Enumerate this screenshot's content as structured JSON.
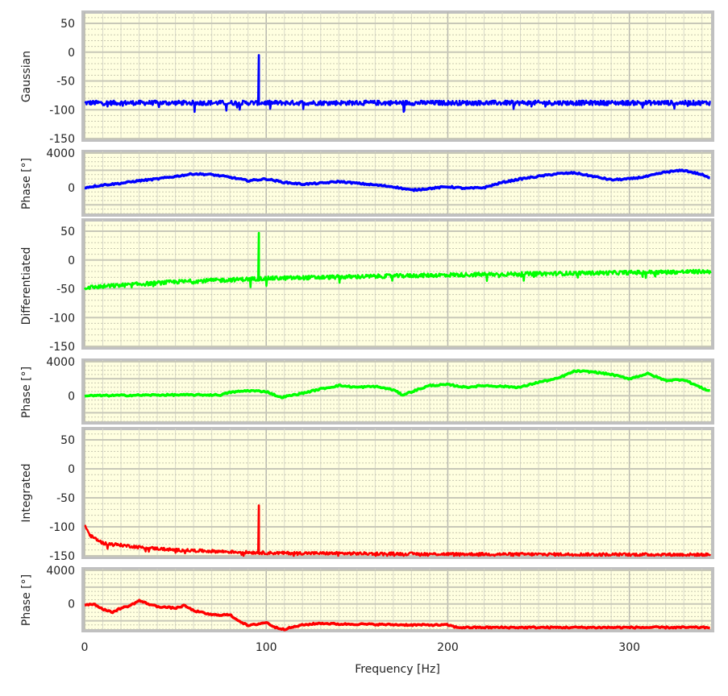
{
  "chart_data": {
    "type": "line",
    "xlabel": "Frequency [Hz]",
    "xlim": [
      0,
      345
    ],
    "xticks": [
      0,
      100,
      200,
      300
    ],
    "grid": true,
    "background_color": "#ffffe0",
    "panels": [
      {
        "ylabel": "Gaussian",
        "kind": "magnitude",
        "color": "#0000ff",
        "ylim": [
          -150,
          50
        ],
        "yticks": [
          50,
          0,
          -50,
          -100,
          -150
        ],
        "baseline": {
          "x": [
            0,
            345
          ],
          "y": [
            -88,
            -88
          ]
        },
        "noise_amplitude": 8,
        "peak": {
          "x": 96,
          "y": -5
        }
      },
      {
        "ylabel": "Phase [°]",
        "kind": "phase",
        "color": "#0000ff",
        "ylim": [
          -3000,
          4000
        ],
        "yticks": [
          4000,
          0
        ],
        "x": [
          0,
          10,
          20,
          30,
          40,
          50,
          60,
          70,
          80,
          90,
          100,
          110,
          120,
          130,
          140,
          150,
          160,
          170,
          180,
          190,
          200,
          210,
          220,
          230,
          240,
          250,
          260,
          270,
          280,
          290,
          300,
          310,
          320,
          330,
          340,
          345
        ],
        "y": [
          0,
          300,
          500,
          800,
          1000,
          1300,
          1600,
          1500,
          1200,
          800,
          1000,
          600,
          400,
          500,
          700,
          500,
          300,
          100,
          -300,
          -100,
          100,
          -100,
          0,
          600,
          1000,
          1300,
          1600,
          1700,
          1300,
          900,
          1000,
          1300,
          1800,
          2000,
          1500,
          1000
        ]
      },
      {
        "ylabel": "Differentiated",
        "kind": "magnitude",
        "color": "#00ff00",
        "ylim": [
          -150,
          50
        ],
        "yticks": [
          50,
          0,
          -50,
          -100,
          -150
        ],
        "baseline": {
          "x": [
            0,
            50,
            100,
            200,
            345
          ],
          "y": [
            -48,
            -38,
            -32,
            -26,
            -20
          ]
        },
        "noise_amplitude": 7,
        "peak": {
          "x": 96,
          "y": 47
        }
      },
      {
        "ylabel": "Phase [°]",
        "kind": "phase",
        "color": "#00ff00",
        "ylim": [
          -3000,
          4000
        ],
        "yticks": [
          4000,
          0
        ],
        "x": [
          0,
          45,
          75,
          80,
          90,
          100,
          108,
          120,
          130,
          140,
          150,
          160,
          170,
          175,
          190,
          200,
          210,
          220,
          230,
          240,
          250,
          260,
          270,
          280,
          290,
          300,
          310,
          320,
          330,
          340,
          345
        ],
        "y": [
          0,
          100,
          100,
          400,
          600,
          500,
          -200,
          300,
          800,
          1200,
          1000,
          1100,
          700,
          100,
          1200,
          1300,
          1000,
          1200,
          1100,
          1000,
          1600,
          2000,
          2900,
          2800,
          2500,
          2000,
          2600,
          1800,
          1900,
          900,
          500
        ]
      },
      {
        "ylabel": "Integrated",
        "kind": "magnitude",
        "color": "#ff0000",
        "ylim": [
          -150,
          50
        ],
        "yticks": [
          50,
          0,
          -50,
          -100,
          -150
        ],
        "baseline": {
          "x": [
            0,
            3,
            10,
            30,
            50,
            100,
            200,
            345
          ],
          "y": [
            -97,
            -115,
            -128,
            -135,
            -140,
            -145,
            -147,
            -148
          ]
        },
        "noise_amplitude": 5,
        "peak": {
          "x": 96,
          "y": -63
        }
      },
      {
        "ylabel": "Phase [°]",
        "kind": "phase",
        "color": "#ff0000",
        "ylim": [
          -3000,
          4000
        ],
        "yticks": [
          4000,
          0
        ],
        "x": [
          0,
          5,
          10,
          15,
          20,
          25,
          30,
          35,
          40,
          45,
          50,
          55,
          60,
          70,
          80,
          85,
          90,
          100,
          105,
          110,
          120,
          130,
          140,
          150,
          180,
          200,
          205,
          345
        ],
        "y": [
          -100,
          0,
          -600,
          -1000,
          -500,
          -200,
          400,
          0,
          -300,
          -400,
          -500,
          -200,
          -800,
          -1300,
          -1300,
          -2000,
          -2600,
          -2200,
          -2800,
          -3000,
          -2500,
          -2300,
          -2400,
          -2400,
          -2500,
          -2500,
          -2800,
          -2800
        ]
      }
    ]
  }
}
